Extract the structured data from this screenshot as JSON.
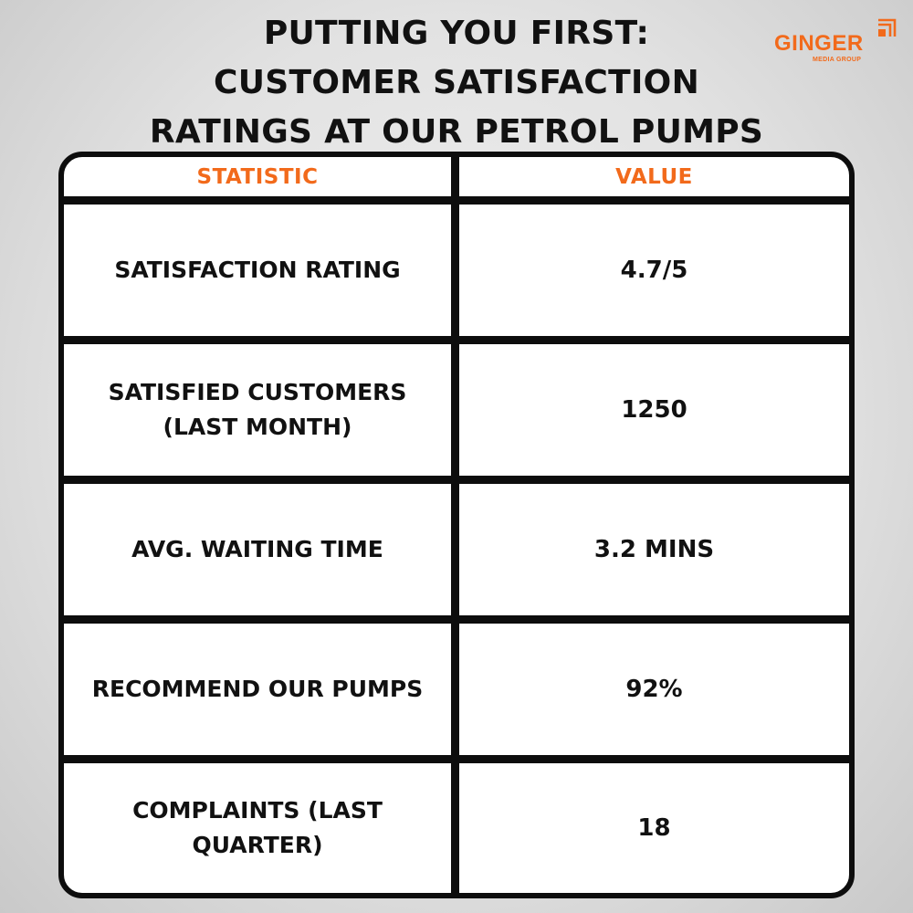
{
  "title": {
    "line1": "PUTTING YOU FIRST:",
    "line2": "CUSTOMER SATISFACTION",
    "line3": "RATINGS AT OUR PETROL PUMPS"
  },
  "logo": {
    "name": "GINGER",
    "tagline": "MEDIA GROUP",
    "color": "#f26a1b"
  },
  "table": {
    "headers": [
      "STATISTIC",
      "VALUE"
    ],
    "header_color": "#f26a1b",
    "rows": [
      {
        "statistic": "SATISFACTION RATING",
        "value": "4.7/5"
      },
      {
        "statistic": "SATISFIED CUSTOMERS (LAST MONTH)",
        "value": "1250"
      },
      {
        "statistic": "AVG. WAITING TIME",
        "value": "3.2 MINS"
      },
      {
        "statistic": "RECOMMEND OUR PUMPS",
        "value": "92%"
      },
      {
        "statistic": "COMPLAINTS (LAST QUARTER)",
        "value": "18"
      }
    ]
  }
}
